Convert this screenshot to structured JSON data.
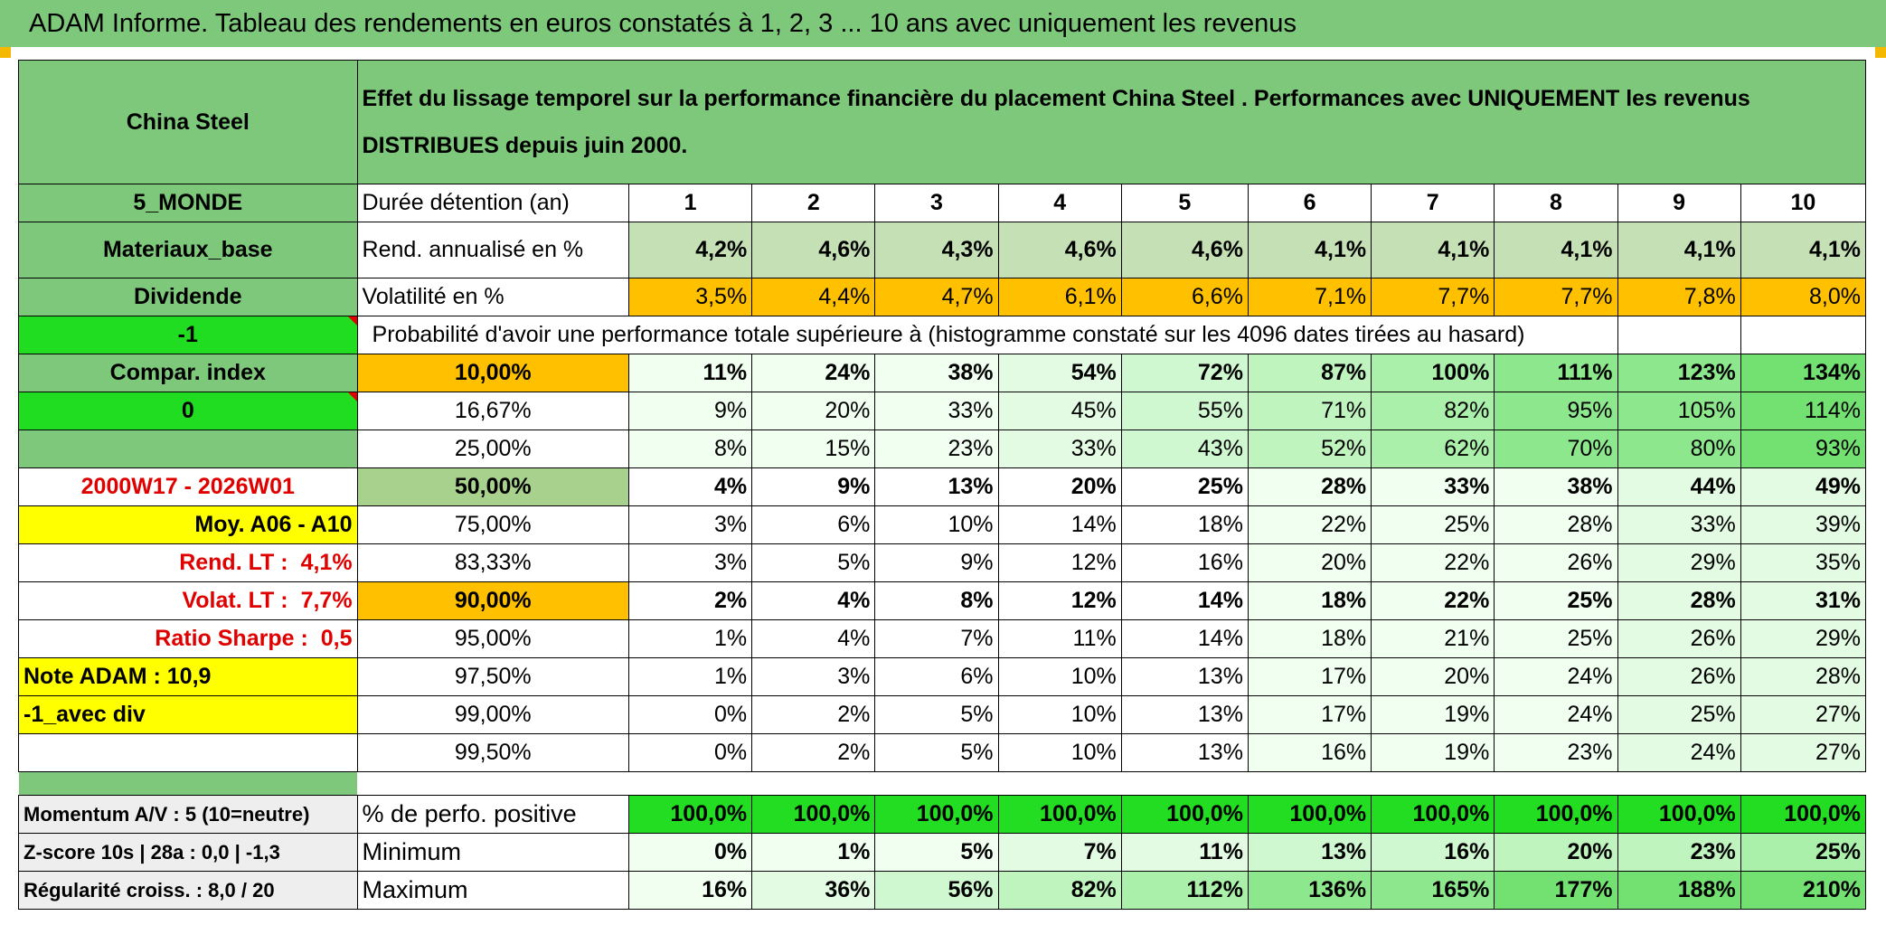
{
  "banner": "ADAM Informe. Tableau des rendements en euros constatés à 1, 2, 3 ... 10 ans avec uniquement les revenus",
  "header": {
    "name": "China Steel",
    "description": "Effet du lissage temporel sur la performance financière du placement China Steel . Performances avec UNIQUEMENT les revenus DISTRIBUES depuis juin 2000."
  },
  "durations": {
    "side": "5_MONDE",
    "label": "Durée détention (an)",
    "values": [
      "1",
      "2",
      "3",
      "4",
      "5",
      "6",
      "7",
      "8",
      "9",
      "10"
    ]
  },
  "rendement": {
    "side": "Materiaux_base",
    "label": "Rend. annualisé en %",
    "values": [
      "4,2%",
      "4,6%",
      "4,3%",
      "4,6%",
      "4,6%",
      "4,1%",
      "4,1%",
      "4,1%",
      "4,1%",
      "4,1%"
    ]
  },
  "volatilite": {
    "side": "Dividende",
    "label": "Volatilité en %",
    "values": [
      "3,5%",
      "4,4%",
      "4,7%",
      "6,1%",
      "6,6%",
      "7,1%",
      "7,7%",
      "7,7%",
      "7,8%",
      "8,0%"
    ]
  },
  "probability": {
    "side": "-1",
    "label": "Probabilité d'avoir une performance totale supérieure à (histogramme constaté sur les 4096 dates tirées au hasard)"
  },
  "side_labels": {
    "compar": "Compar. index",
    "zero": "0",
    "period": "2000W17 - 2026W01",
    "moy": "Moy. A06 - A10",
    "rend_lt_label": "Rend. LT :",
    "rend_lt_value": "4,1%",
    "volat_lt_label": "Volat. LT :",
    "volat_lt_value": "7,7%",
    "sharpe_label": "Ratio Sharpe :",
    "sharpe_value": "0,5",
    "note": "Note ADAM : 10,9",
    "avec_div": "-1_avec div"
  },
  "quantiles": [
    {
      "q": "10,00%",
      "values": [
        "11%",
        "24%",
        "38%",
        "54%",
        "72%",
        "87%",
        "100%",
        "111%",
        "123%",
        "134%"
      ]
    },
    {
      "q": "16,67%",
      "values": [
        "9%",
        "20%",
        "33%",
        "45%",
        "55%",
        "71%",
        "82%",
        "95%",
        "105%",
        "114%"
      ]
    },
    {
      "q": "25,00%",
      "values": [
        "8%",
        "15%",
        "23%",
        "33%",
        "43%",
        "52%",
        "62%",
        "70%",
        "80%",
        "93%"
      ]
    },
    {
      "q": "50,00%",
      "values": [
        "4%",
        "9%",
        "13%",
        "20%",
        "25%",
        "28%",
        "33%",
        "38%",
        "44%",
        "49%"
      ]
    },
    {
      "q": "75,00%",
      "values": [
        "3%",
        "6%",
        "10%",
        "14%",
        "18%",
        "22%",
        "25%",
        "28%",
        "33%",
        "39%"
      ]
    },
    {
      "q": "83,33%",
      "values": [
        "3%",
        "5%",
        "9%",
        "12%",
        "16%",
        "20%",
        "22%",
        "26%",
        "29%",
        "35%"
      ]
    },
    {
      "q": "90,00%",
      "values": [
        "2%",
        "4%",
        "8%",
        "12%",
        "14%",
        "18%",
        "22%",
        "25%",
        "28%",
        "31%"
      ]
    },
    {
      "q": "95,00%",
      "values": [
        "1%",
        "4%",
        "7%",
        "11%",
        "14%",
        "18%",
        "21%",
        "25%",
        "26%",
        "29%"
      ]
    },
    {
      "q": "97,50%",
      "values": [
        "1%",
        "3%",
        "6%",
        "10%",
        "13%",
        "17%",
        "20%",
        "24%",
        "26%",
        "28%"
      ]
    },
    {
      "q": "99,00%",
      "values": [
        "0%",
        "2%",
        "5%",
        "10%",
        "13%",
        "17%",
        "19%",
        "24%",
        "25%",
        "27%"
      ]
    },
    {
      "q": "99,50%",
      "values": [
        "0%",
        "2%",
        "5%",
        "10%",
        "13%",
        "16%",
        "19%",
        "23%",
        "24%",
        "27%"
      ]
    }
  ],
  "stats": [
    {
      "side": "Momentum A/V : 5 (10=neutre)",
      "label": "% de perfo. positive",
      "values": [
        "100,0%",
        "100,0%",
        "100,0%",
        "100,0%",
        "100,0%",
        "100,0%",
        "100,0%",
        "100,0%",
        "100,0%",
        "100,0%"
      ]
    },
    {
      "side": "Z-score 10s | 28a : 0,0 | -1,3",
      "label": "Minimum",
      "values": [
        "0%",
        "1%",
        "5%",
        "7%",
        "11%",
        "13%",
        "16%",
        "20%",
        "23%",
        "25%"
      ]
    },
    {
      "side": "Régularité croiss. : 8,0 / 20",
      "label": "Maximum",
      "values": [
        "16%",
        "36%",
        "56%",
        "82%",
        "112%",
        "136%",
        "165%",
        "177%",
        "188%",
        "210%"
      ]
    }
  ],
  "colors": {
    "header_green": "#7dc87a",
    "bright_green": "#21dd21",
    "orange": "#ffc000",
    "yellow": "#ffff00",
    "red_text": "#e00000"
  }
}
